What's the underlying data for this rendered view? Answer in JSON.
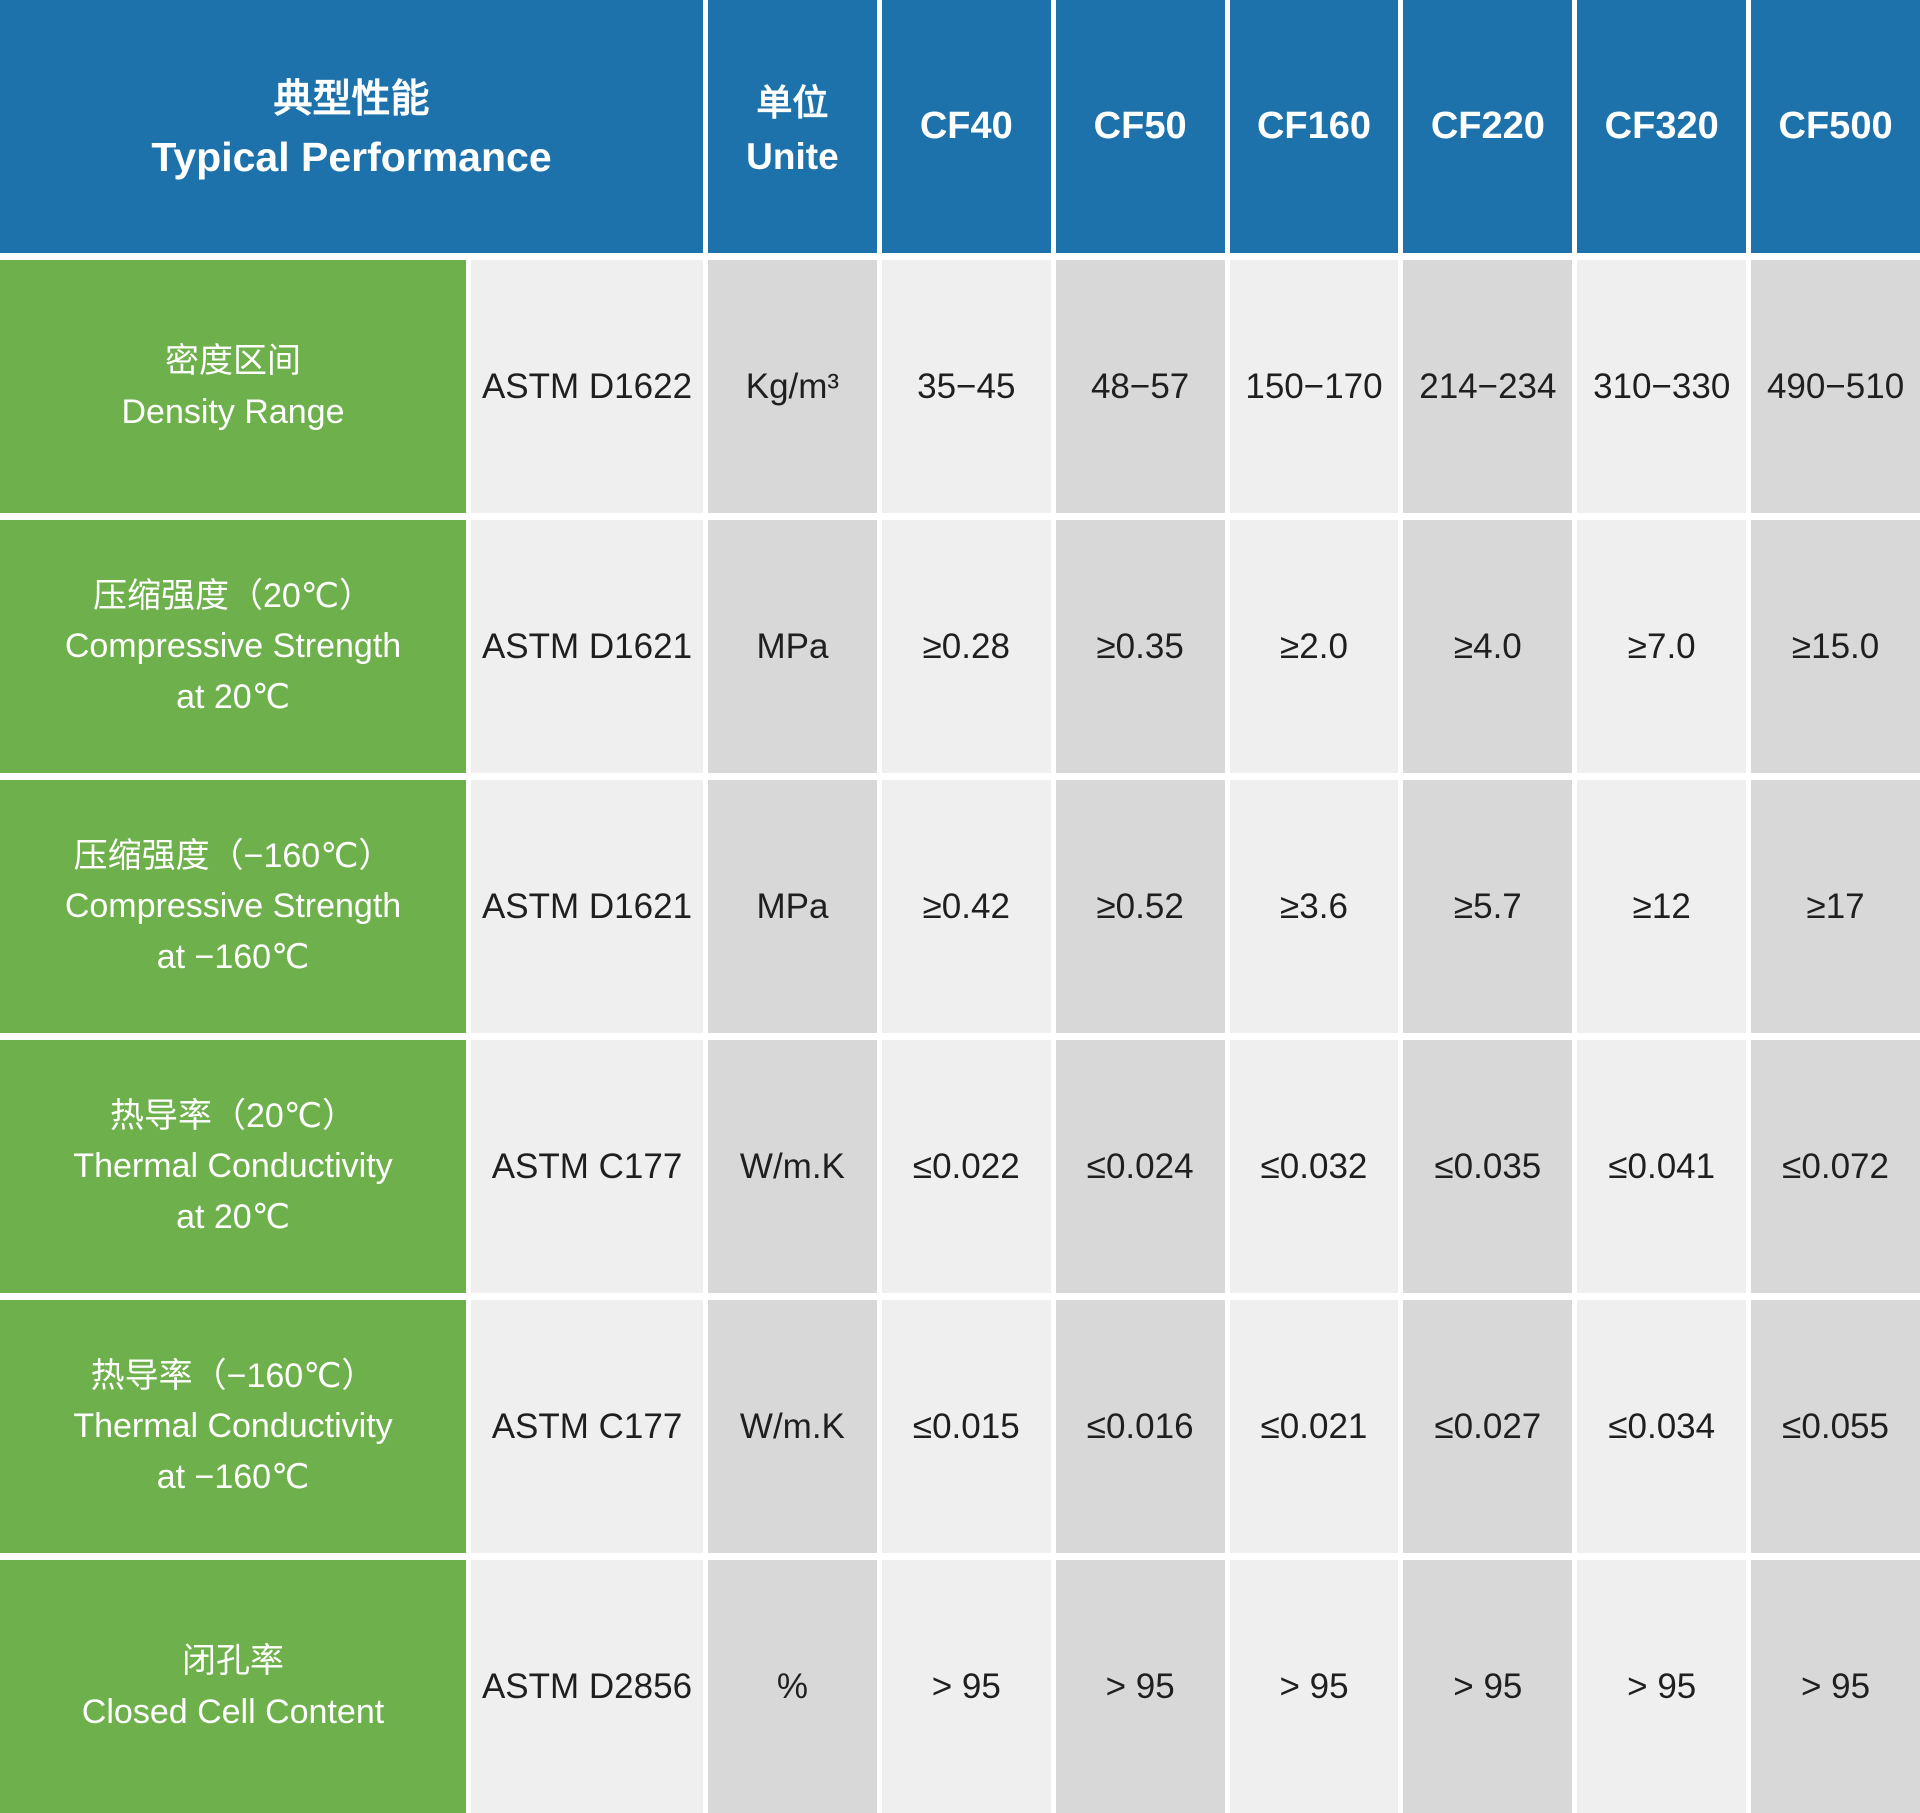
{
  "header": {
    "title_zh": "典型性能",
    "title_en": "Typical Performance",
    "unit_zh": "单位",
    "unit_en": "Unite",
    "products": [
      "CF40",
      "CF50",
      "CF160",
      "CF220",
      "CF320",
      "CF500"
    ]
  },
  "rows": [
    {
      "label_zh": "密度区间",
      "label_en": "Density Range",
      "label_en2": "",
      "standard": "ASTM D1622",
      "unit": "Kg/m³",
      "values": [
        "35−45",
        "48−57",
        "150−170",
        "214−234",
        "310−330",
        "490−510"
      ]
    },
    {
      "label_zh": "压缩强度（20℃）",
      "label_en": "Compressive Strength",
      "label_en2": "at 20℃",
      "standard": "ASTM D1621",
      "unit": "MPa",
      "values": [
        "≥0.28",
        "≥0.35",
        "≥2.0",
        "≥4.0",
        "≥7.0",
        "≥15.0"
      ]
    },
    {
      "label_zh": "压缩强度（−160℃）",
      "label_en": "Compressive Strength",
      "label_en2": "at −160℃",
      "standard": "ASTM D1621",
      "unit": "MPa",
      "values": [
        "≥0.42",
        "≥0.52",
        "≥3.6",
        "≥5.7",
        "≥12",
        "≥17"
      ]
    },
    {
      "label_zh": "热导率（20℃）",
      "label_en": "Thermal Conductivity",
      "label_en2": "at 20℃",
      "standard": "ASTM C177",
      "unit": "W/m.K",
      "values": [
        "≤0.022",
        "≤0.024",
        "≤0.032",
        "≤0.035",
        "≤0.041",
        "≤0.072"
      ]
    },
    {
      "label_zh": "热导率（−160℃）",
      "label_en": "Thermal Conductivity",
      "label_en2": "at −160℃",
      "standard": "ASTM C177",
      "unit": "W/m.K",
      "values": [
        "≤0.015",
        "≤0.016",
        "≤0.021",
        "≤0.027",
        "≤0.034",
        "≤0.055"
      ]
    },
    {
      "label_zh": "闭孔率",
      "label_en": "Closed Cell Content",
      "label_en2": "",
      "standard": "ASTM D2856",
      "unit": "%",
      "values": [
        "> 95",
        "> 95",
        "> 95",
        "> 95",
        "> 95",
        "> 95"
      ]
    }
  ],
  "colors": {
    "header_blue": "#1d72ab",
    "label_green": "#6eb04b",
    "column_light": "#efefef",
    "column_dark": "#d8d8d8",
    "text_on_color": "#ffffff",
    "text_on_gray": "#1f1f1f",
    "divider_white": "#ffffff"
  }
}
